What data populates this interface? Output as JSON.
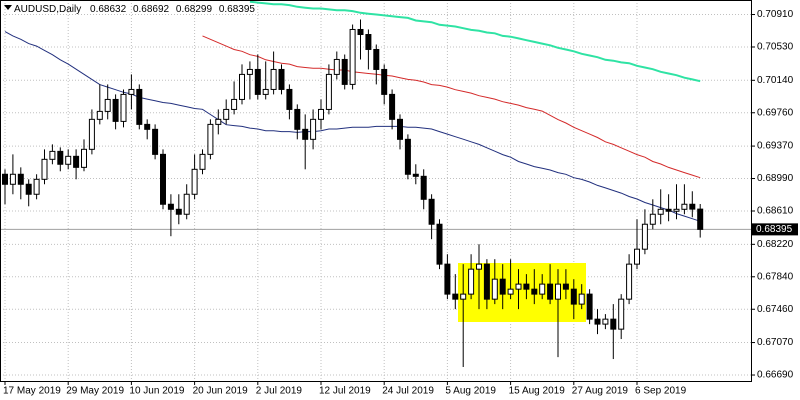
{
  "chart_data": {
    "type": "candlestick",
    "title": "AUDUSD,Daily",
    "categories": [
      "17 May 2019",
      null,
      null,
      null,
      null,
      null,
      null,
      null,
      "29 May 2019",
      null,
      null,
      null,
      null,
      null,
      null,
      null,
      "10 Jun 2019",
      null,
      null,
      null,
      null,
      null,
      null,
      null,
      "20 Jun 2019",
      null,
      null,
      null,
      null,
      null,
      null,
      null,
      "2 Jul 2019",
      null,
      null,
      null,
      null,
      null,
      null,
      null,
      "12 Jul 2019",
      null,
      null,
      null,
      null,
      null,
      null,
      null,
      "24 Jul 2019",
      null,
      null,
      null,
      null,
      null,
      null,
      null,
      "5 Aug 2019",
      null,
      null,
      null,
      null,
      null,
      null,
      null,
      "15 Aug 2019",
      null,
      null,
      null,
      null,
      null,
      null,
      null,
      "27 Aug 2019",
      null,
      null,
      null,
      null,
      null,
      null,
      null,
      "6 Sep 2019",
      null,
      null,
      null,
      null,
      null,
      null,
      null,
      null
    ],
    "open": [
      0.6904,
      0.68923,
      0.6904,
      0.68923,
      0.68806,
      0.68981,
      0.69215,
      0.69308,
      0.69157,
      0.6925,
      0.69121,
      0.69332,
      0.69683,
      0.69776,
      0.69916,
      0.69659,
      0.69975,
      0.70033,
      0.69624,
      0.69566,
      0.69273,
      0.68689,
      0.6863,
      0.68572,
      0.68806,
      0.69098,
      0.69273,
      0.69624,
      0.69683,
      0.69799,
      0.69916,
      0.70209,
      0.70267,
      0.69975,
      0.70033,
      0.70267,
      0.70033,
      0.69799,
      0.69566,
      0.69449,
      0.69683,
      0.69799,
      0.70209,
      0.70384,
      0.70092,
      0.70735,
      0.70676,
      0.70501,
      0.70267,
      0.69975,
      0.69683,
      0.69449,
      0.6904,
      0.69016,
      0.68747,
      0.68455,
      0.67988,
      0.67637,
      0.67578,
      0.67637,
      0.67929,
      0.67988,
      0.67578,
      0.67812,
      0.67637,
      0.67695,
      0.67754,
      0.67695,
      0.67637,
      0.67754,
      0.67578,
      0.67754,
      0.67695,
      0.6752,
      0.67637,
      0.67344,
      0.67286,
      0.67344,
      0.67227,
      0.67578,
      0.67988,
      0.68163,
      0.68455,
      0.68572,
      0.6863,
      0.68607,
      0.6863,
      0.68689,
      0.68632
    ],
    "high": [
      0.69098,
      0.69273,
      0.69121,
      0.68981,
      0.6904,
      0.69332,
      0.6939,
      0.69355,
      0.69332,
      0.69332,
      0.69449,
      0.69799,
      0.70092,
      0.70092,
      0.69975,
      0.70033,
      0.70209,
      0.70092,
      0.69683,
      0.69624,
      0.69332,
      0.68806,
      0.68806,
      0.68923,
      0.69273,
      0.69332,
      0.69683,
      0.69799,
      0.69916,
      0.70127,
      0.70326,
      0.70361,
      0.70442,
      0.70361,
      0.70477,
      0.70326,
      0.70092,
      0.69858,
      0.69741,
      0.69799,
      0.69916,
      0.70326,
      0.70477,
      0.70442,
      0.70793,
      0.70852,
      0.70735,
      0.70559,
      0.70326,
      0.70033,
      0.69741,
      0.69507,
      0.69157,
      0.69098,
      0.68806,
      0.68513,
      0.68104,
      0.67871,
      0.67988,
      0.68104,
      0.68221,
      0.68046,
      0.68046,
      0.67988,
      0.68046,
      0.67929,
      0.67871,
      0.67929,
      0.67871,
      0.67988,
      0.67929,
      0.67929,
      0.67812,
      0.67754,
      0.67695,
      0.67461,
      0.67403,
      0.6752,
      0.67637,
      0.68104,
      0.68513,
      0.6863,
      0.68747,
      0.68864,
      0.68806,
      0.68923,
      0.68923,
      0.68841,
      0.68692
    ],
    "low": [
      0.68689,
      0.68806,
      0.68747,
      0.68665,
      0.68747,
      0.68923,
      0.69157,
      0.69075,
      0.69098,
      0.68981,
      0.69075,
      0.69273,
      0.69624,
      0.69683,
      0.69566,
      0.69589,
      0.69799,
      0.69566,
      0.69449,
      0.69215,
      0.6863,
      0.68315,
      0.68455,
      0.68513,
      0.68747,
      0.6904,
      0.69215,
      0.69507,
      0.69624,
      0.69741,
      0.69858,
      0.69916,
      0.69916,
      0.69916,
      0.69975,
      0.69975,
      0.69683,
      0.69449,
      0.69098,
      0.69332,
      0.69566,
      0.69741,
      0.7015,
      0.70033,
      0.70033,
      0.70384,
      0.70267,
      0.70092,
      0.69858,
      0.69566,
      0.69332,
      0.68981,
      0.68923,
      0.6863,
      0.6828,
      0.67929,
      0.67578,
      0.67461,
      0.66784,
      0.67578,
      0.67461,
      0.67461,
      0.6752,
      0.67461,
      0.67578,
      0.67461,
      0.67578,
      0.6752,
      0.67578,
      0.6752,
      0.669,
      0.67578,
      0.67344,
      0.67461,
      0.67286,
      0.67169,
      0.67227,
      0.66877,
      0.67111,
      0.6752,
      0.67929,
      0.68104,
      0.68397,
      0.68455,
      0.6849,
      0.68513,
      0.68572,
      0.68537,
      0.68299
    ],
    "close": [
      0.68923,
      0.6904,
      0.68923,
      0.68806,
      0.68981,
      0.69215,
      0.69308,
      0.69157,
      0.6925,
      0.69121,
      0.69332,
      0.69683,
      0.69776,
      0.69916,
      0.69659,
      0.69975,
      0.70033,
      0.69624,
      0.69566,
      0.69273,
      0.68689,
      0.6863,
      0.68572,
      0.68806,
      0.69098,
      0.69273,
      0.69624,
      0.69683,
      0.69799,
      0.69916,
      0.70209,
      0.70267,
      0.69975,
      0.70033,
      0.70267,
      0.70033,
      0.69799,
      0.69566,
      0.69449,
      0.69683,
      0.69799,
      0.70209,
      0.70384,
      0.70092,
      0.70735,
      0.70676,
      0.70501,
      0.70267,
      0.69975,
      0.69683,
      0.69449,
      0.6904,
      0.69016,
      0.68747,
      0.68455,
      0.67988,
      0.67637,
      0.67578,
      0.67637,
      0.67929,
      0.67988,
      0.67578,
      0.67812,
      0.67637,
      0.67695,
      0.67754,
      0.67695,
      0.67637,
      0.67754,
      0.67578,
      0.67754,
      0.67695,
      0.6752,
      0.67637,
      0.67344,
      0.67286,
      0.67344,
      0.67227,
      0.67578,
      0.67988,
      0.68163,
      0.68455,
      0.68572,
      0.6863,
      0.68607,
      0.6863,
      0.68689,
      0.68632,
      0.68395
    ],
    "up_color": "#ffffff",
    "down_color": "#000000",
    "lines": [
      {
        "color": "#22307e",
        "values": [
          0.7071,
          0.7066,
          0.7062,
          0.7057,
          0.7054,
          0.7049,
          0.7044,
          0.7038,
          0.7033,
          0.7027,
          0.7021,
          0.7015,
          0.7009,
          0.7006,
          0.7003,
          0.7,
          0.6998,
          0.6994,
          0.6992,
          0.699,
          0.6988,
          0.6987,
          0.6985,
          0.6983,
          0.6981,
          0.698,
          0.6974,
          0.6968,
          0.6962,
          0.6961,
          0.696,
          0.6958,
          0.6957,
          0.6955,
          0.6955,
          0.6954,
          0.6954,
          0.6953,
          0.6954,
          0.6954,
          0.6955,
          0.6957,
          0.6957,
          0.6958,
          0.6959,
          0.6959,
          0.6959,
          0.696,
          0.696,
          0.696,
          0.696,
          0.6959,
          0.6959,
          0.6958,
          0.6957,
          0.6954,
          0.6951,
          0.6948,
          0.6945,
          0.6942,
          0.6939,
          0.6935,
          0.6931,
          0.6927,
          0.6924,
          0.6919,
          0.6916,
          0.6913,
          0.6911,
          0.6909,
          0.6906,
          0.6904,
          0.69,
          0.6898,
          0.6895,
          0.6891,
          0.6888,
          0.6885,
          0.6882,
          0.6878,
          0.6875,
          0.6871,
          0.6868,
          0.6865,
          0.6862,
          0.6858,
          0.6855,
          0.6852,
          0.6849
        ]
      },
      {
        "color": "#d42a2a",
        "values": [
          null,
          null,
          null,
          null,
          null,
          null,
          null,
          null,
          null,
          null,
          null,
          null,
          null,
          null,
          null,
          null,
          null,
          null,
          null,
          null,
          null,
          null,
          null,
          null,
          null,
          0.7066,
          0.7062,
          0.7058,
          0.7054,
          0.705,
          0.7048,
          0.7044,
          0.7042,
          0.7038,
          0.7036,
          0.7034,
          0.7033,
          0.703,
          0.7029,
          0.7028,
          0.7028,
          0.7027,
          0.7026,
          0.7026,
          0.7024,
          0.7023,
          0.7022,
          0.7021,
          0.702,
          0.7019,
          0.7017,
          0.7015,
          0.7014,
          0.7012,
          0.7009,
          0.7008,
          0.7006,
          0.7003,
          0.7001,
          0.6999,
          0.6996,
          0.6994,
          0.6992,
          0.6989,
          0.6987,
          0.6985,
          0.6982,
          0.698,
          0.6978,
          0.6973,
          0.6968,
          0.6964,
          0.6959,
          0.6955,
          0.6951,
          0.6947,
          0.6942,
          0.6939,
          0.6935,
          0.6931,
          0.6927,
          0.6924,
          0.6919,
          0.6916,
          0.6912,
          0.6909,
          0.6906,
          0.6903,
          0.69
        ]
      },
      {
        "color": "#2fe3a4",
        "values": [
          null,
          null,
          null,
          null,
          null,
          null,
          null,
          null,
          null,
          null,
          null,
          null,
          null,
          null,
          null,
          null,
          null,
          null,
          null,
          null,
          null,
          null,
          null,
          null,
          null,
          null,
          null,
          null,
          null,
          null,
          null,
          0.7106,
          0.7105,
          0.7104,
          0.7103,
          0.7103,
          0.7102,
          0.71,
          0.7099,
          0.7098,
          0.7098,
          0.7097,
          0.7096,
          0.7096,
          0.7095,
          0.7093,
          0.7092,
          0.7091,
          0.709,
          0.7089,
          0.7088,
          0.7087,
          0.7084,
          0.7083,
          0.7082,
          0.7079,
          0.7078,
          0.7077,
          0.7075,
          0.7073,
          0.7072,
          0.707,
          0.7069,
          0.7066,
          0.7065,
          0.7063,
          0.7061,
          0.7059,
          0.7057,
          0.7055,
          0.7052,
          0.705,
          0.7048,
          0.7045,
          0.7043,
          0.7041,
          0.7038,
          0.7037,
          0.7035,
          0.7034,
          0.7031,
          0.7029,
          0.7027,
          0.7024,
          0.7022,
          0.702,
          0.7017,
          0.7015,
          0.7013
        ]
      }
    ],
    "ylim": [
      0.6662,
      0.7108
    ],
    "yticks": [
      {
        "value": 0.7091,
        "label": "0.70910"
      },
      {
        "value": 0.7053,
        "label": "0.70530"
      },
      {
        "value": 0.7014,
        "label": "0.70140"
      },
      {
        "value": 0.6976,
        "label": "0.69760"
      },
      {
        "value": 0.6937,
        "label": "0.69370"
      },
      {
        "value": 0.6899,
        "label": "0.68990"
      },
      {
        "value": 0.6861,
        "label": "0.68610"
      },
      {
        "value": 0.6822,
        "label": "0.68220"
      },
      {
        "value": 0.6784,
        "label": "0.67840"
      },
      {
        "value": 0.6746,
        "label": "0.67460"
      },
      {
        "value": 0.6707,
        "label": "0.67070"
      },
      {
        "value": 0.6669,
        "label": "0.66690"
      }
    ],
    "grid": true
  }
}
